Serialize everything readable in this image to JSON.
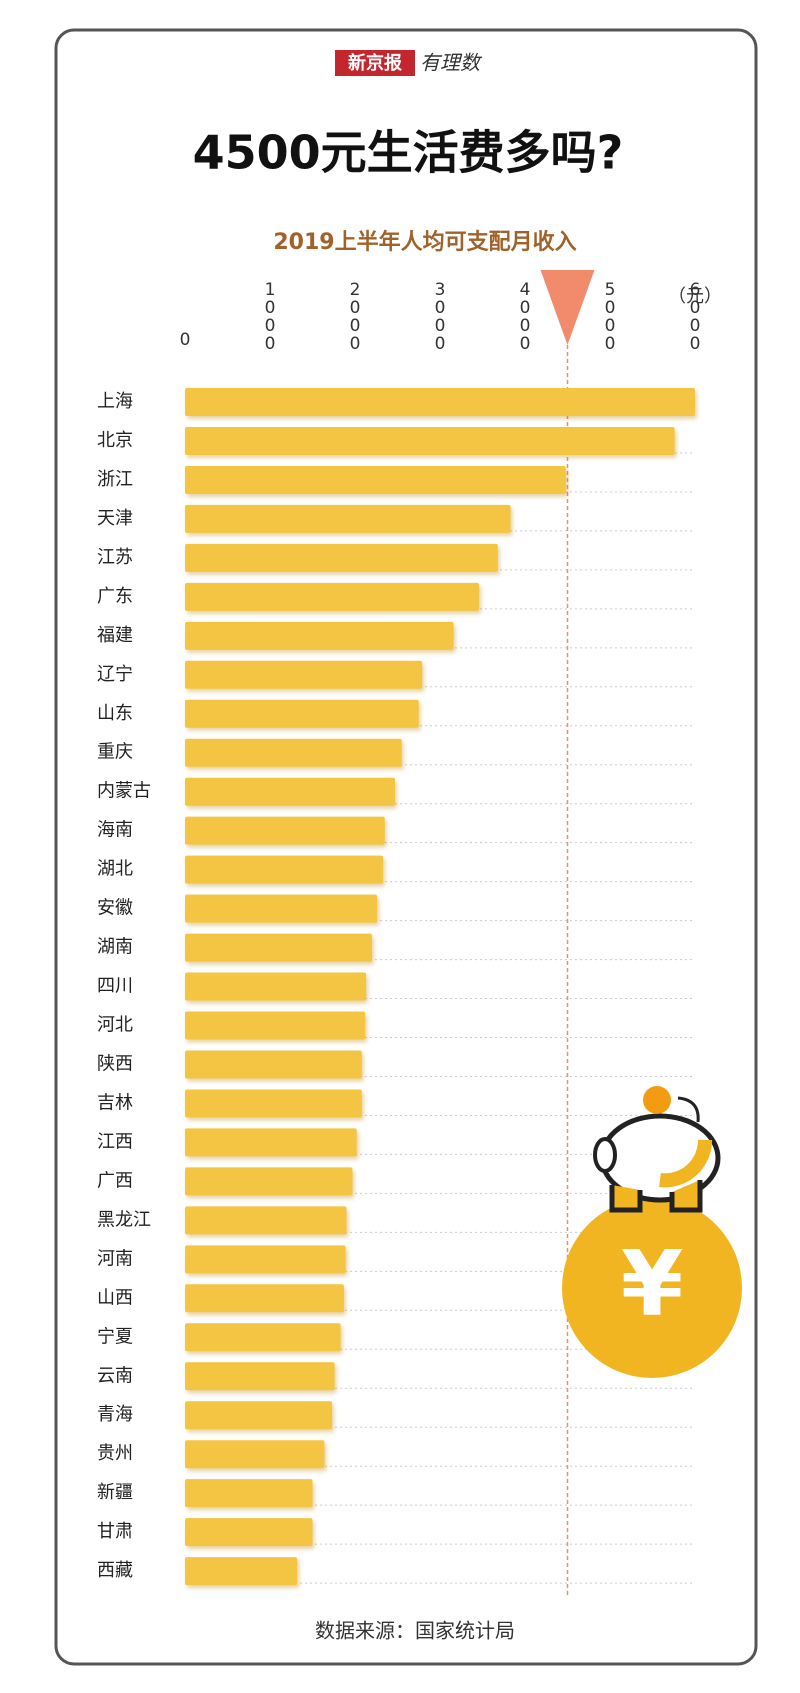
{
  "brand": {
    "name": "新京报",
    "column": "有理数"
  },
  "chart_data": {
    "type": "barh",
    "title": "4500元生活费多吗?",
    "subtitle": "2019上半年人均可支配月收入",
    "unit": "（元）",
    "categories": [
      "上海",
      "北京",
      "浙江",
      "天津",
      "江苏",
      "广东",
      "福建",
      "辽宁",
      "山东",
      "重庆",
      "内蒙古",
      "海南",
      "湖北",
      "安徽",
      "湖南",
      "四川",
      "河北",
      "陕西",
      "吉林",
      "江西",
      "广西",
      "黑龙江",
      "河南",
      "山西",
      "宁夏",
      "云南",
      "青海",
      "贵州",
      "新疆",
      "甘肃",
      "西藏"
    ],
    "values": [
      6000,
      5760,
      4480,
      3830,
      3680,
      3460,
      3160,
      2790,
      2750,
      2550,
      2470,
      2350,
      2330,
      2260,
      2200,
      2130,
      2120,
      2080,
      2080,
      2020,
      1970,
      1900,
      1890,
      1870,
      1830,
      1760,
      1730,
      1640,
      1500,
      1500,
      1320
    ],
    "color": "#f4c542",
    "xlim": [
      0,
      6000
    ],
    "xticks": [
      0,
      1000,
      2000,
      3000,
      4000,
      5000,
      6000
    ],
    "reference_line": 4500,
    "reference_color": "#f28b6b",
    "source": "数据来源：国家统计局"
  }
}
